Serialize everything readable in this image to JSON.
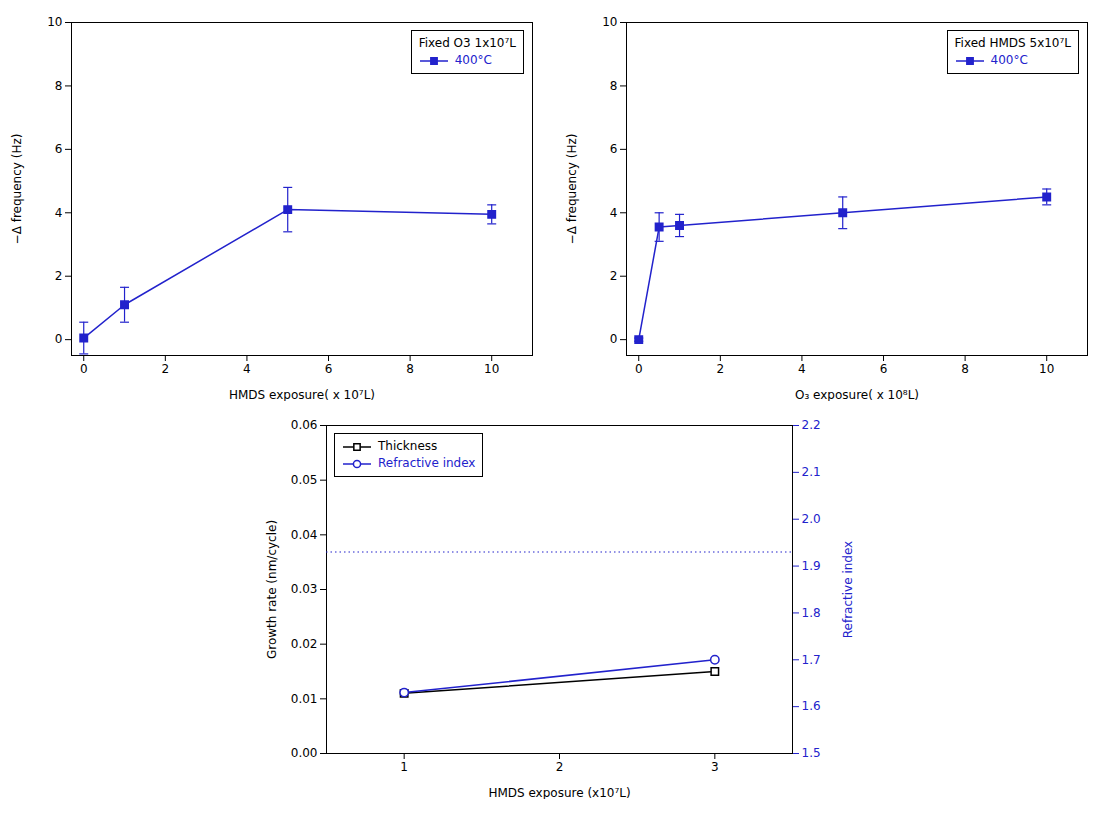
{
  "chart_data": [
    {
      "type": "line",
      "x_label": "HMDS exposure( x 10⁷L)",
      "y_label": "−Δ frequency (Hz)",
      "legend_title": "Fixed O3 1x10⁷L",
      "legend": "upper right",
      "grid": false,
      "x": [
        0.0,
        1.0,
        5.0,
        10.0
      ],
      "series": [
        {
          "name": "400°C",
          "color": "#2222cc",
          "marker": "square",
          "line_style": "solid",
          "values": [
            0.05,
            1.1,
            4.1,
            3.95
          ],
          "errors": [
            0.5,
            0.55,
            0.7,
            0.3
          ]
        }
      ],
      "xlim": [
        -0.3,
        11
      ],
      "ylim": [
        -0.5,
        10
      ],
      "xticks": [
        0,
        2,
        4,
        6,
        8,
        10
      ],
      "yticks": [
        0,
        2,
        4,
        6,
        8,
        10
      ]
    },
    {
      "type": "line",
      "x_label": "O₃ exposure( x 10⁸L)",
      "y_label": "−Δ frequency (Hz)",
      "legend_title": "Fixed HMDS 5x10⁷L",
      "legend": "upper right",
      "grid": false,
      "x": [
        0.0,
        0.5,
        1.0,
        5.0,
        10.0
      ],
      "series": [
        {
          "name": "400°C",
          "color": "#2222cc",
          "marker": "square",
          "line_style": "solid",
          "values": [
            0.0,
            3.55,
            3.6,
            4.0,
            4.5
          ],
          "errors": [
            0.05,
            0.45,
            0.35,
            0.5,
            0.25
          ]
        }
      ],
      "xlim": [
        -0.3,
        11
      ],
      "ylim": [
        -0.5,
        10
      ],
      "xticks": [
        0,
        2,
        4,
        6,
        8,
        10
      ],
      "yticks": [
        0,
        2,
        4,
        6,
        8,
        10
      ]
    },
    {
      "type": "line",
      "x_label": "HMDS exposure (x10⁷L)",
      "y_label": "Growth rate (nm/cycle)",
      "y2_label": "Refractive index",
      "legend": "upper left",
      "grid": false,
      "x": [
        1.0,
        3.0
      ],
      "series": [
        {
          "name": "Thickness",
          "color": "#000000",
          "marker": "open_square",
          "line_style": "solid",
          "values": [
            0.011,
            0.015
          ]
        },
        {
          "name": "Refractive index",
          "color": "#2222cc",
          "marker": "open_circle",
          "line_style": "solid",
          "axis": "y2",
          "values": [
            1.63,
            1.7
          ]
        }
      ],
      "reference_line": {
        "value": 1.93,
        "axis": "y2",
        "color": "#2222cc",
        "line_style": "dotted"
      },
      "xlim": [
        0.5,
        3.5
      ],
      "ylim": [
        0.0,
        0.06
      ],
      "xticks": [
        1,
        2,
        3
      ],
      "yticks": [
        {
          "value": 0.0,
          "label": "0.00"
        },
        0.01,
        0.02,
        0.03,
        0.04,
        0.05,
        0.06
      ],
      "y2lim": [
        1.5,
        2.2
      ],
      "y2ticks": [
        1.5,
        1.6,
        1.7,
        1.8,
        1.9,
        {
          "value": 2.0,
          "label": "2.0"
        },
        2.1,
        2.2
      ]
    }
  ]
}
